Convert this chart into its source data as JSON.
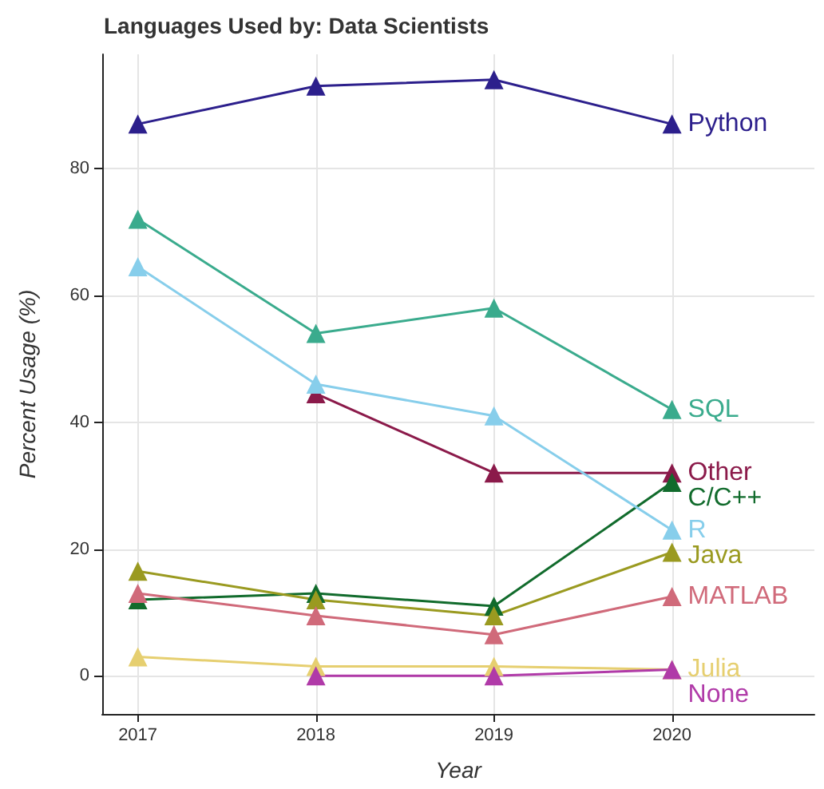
{
  "chart_data": {
    "type": "line",
    "title": "Languages Used by: Data Scientists",
    "xlabel": "Year",
    "ylabel": "Percent Usage (%)",
    "x": [
      2017,
      2018,
      2019,
      2020
    ],
    "series": [
      {
        "name": "Python",
        "color": "#2c1f8c",
        "values": [
          87,
          93,
          94,
          87
        ]
      },
      {
        "name": "SQL",
        "color": "#3aab8d",
        "values": [
          72,
          54,
          58,
          42
        ]
      },
      {
        "name": "Other",
        "color": "#8b1a4a",
        "values": [
          null,
          44.5,
          32,
          32
        ]
      },
      {
        "name": "C/C++",
        "color": "#116b2c",
        "values": [
          12,
          13,
          11,
          30.5
        ]
      },
      {
        "name": "R",
        "color": "#87ceeb",
        "values": [
          64.5,
          46,
          41,
          23
        ]
      },
      {
        "name": "Java",
        "color": "#9a9a20",
        "values": [
          16.5,
          12,
          9.5,
          19.5
        ]
      },
      {
        "name": "MATLAB",
        "color": "#d06a7a",
        "values": [
          13,
          9.5,
          6.5,
          12.5
        ]
      },
      {
        "name": "Julia",
        "color": "#e6cf70",
        "values": [
          3,
          1.5,
          1.5,
          1
        ]
      },
      {
        "name": "None",
        "color": "#b03aa8",
        "values": [
          null,
          0,
          0,
          1
        ]
      }
    ],
    "xlim": [
      2016.8,
      2020.8
    ],
    "xticks": [
      2017,
      2018,
      2019,
      2020
    ],
    "ylim": [
      -6,
      98
    ],
    "yticks": [
      0,
      20,
      40,
      60,
      80
    ],
    "grid": true,
    "marker": "triangle",
    "line_style": "solid",
    "legend": false
  }
}
